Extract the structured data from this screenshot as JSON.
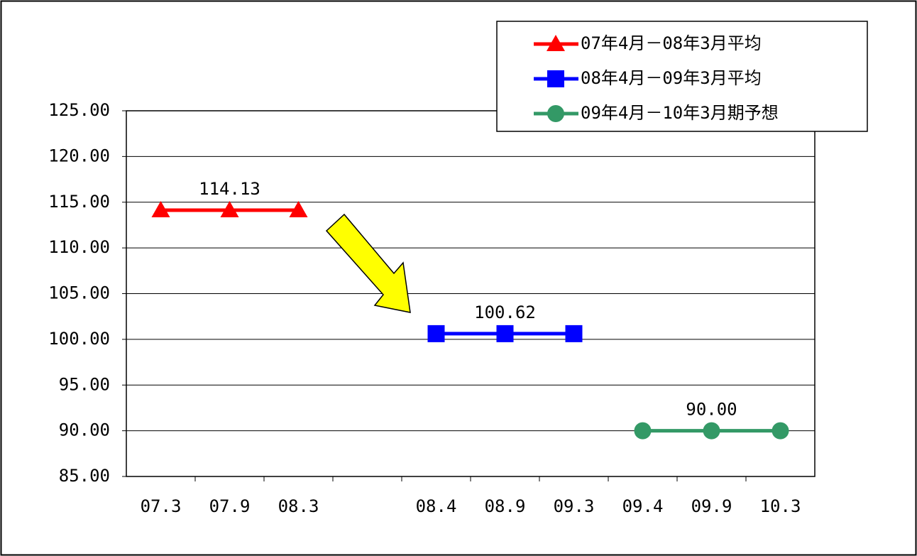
{
  "chart_data": {
    "type": "line",
    "categories": [
      "07.3",
      "07.9",
      "08.3",
      null,
      "08.4",
      "08.9",
      "09.3",
      "09.4",
      "09.9",
      "10.3"
    ],
    "series": [
      {
        "name": "07年4月－08年3月平均",
        "color": "#ff0000",
        "marker": "triangle",
        "values": [
          114.13,
          114.13,
          114.13,
          null,
          null,
          null,
          null,
          null,
          null,
          null
        ],
        "value_labels": [
          null,
          "114.13",
          null,
          null,
          null,
          null,
          null,
          null,
          null,
          null
        ]
      },
      {
        "name": "08年4月－09年3月平均",
        "color": "#0000ff",
        "marker": "square",
        "values": [
          null,
          null,
          null,
          null,
          100.62,
          100.62,
          100.62,
          null,
          null,
          null
        ],
        "value_labels": [
          null,
          null,
          null,
          null,
          null,
          "100.62",
          null,
          null,
          null,
          null
        ]
      },
      {
        "name": "09年4月－10年3月期予想",
        "color": "#339966",
        "marker": "circle",
        "values": [
          null,
          null,
          null,
          null,
          null,
          null,
          null,
          90,
          90,
          90
        ],
        "value_labels": [
          null,
          null,
          null,
          null,
          null,
          null,
          null,
          null,
          "90.00",
          null
        ]
      }
    ],
    "ylim": [
      85,
      125
    ],
    "yticks": [
      {
        "value": 85,
        "label": "85.00"
      },
      {
        "value": 90,
        "label": "90.00"
      },
      {
        "value": 95,
        "label": "95.00"
      },
      {
        "value": 100,
        "label": "100.00"
      },
      {
        "value": 105,
        "label": "105.00"
      },
      {
        "value": 110,
        "label": "110.00"
      },
      {
        "value": 115,
        "label": "115.00"
      },
      {
        "value": 120,
        "label": "120.00"
      },
      {
        "value": 125,
        "label": "125.00"
      }
    ],
    "grid": true,
    "legend": "top-right"
  }
}
